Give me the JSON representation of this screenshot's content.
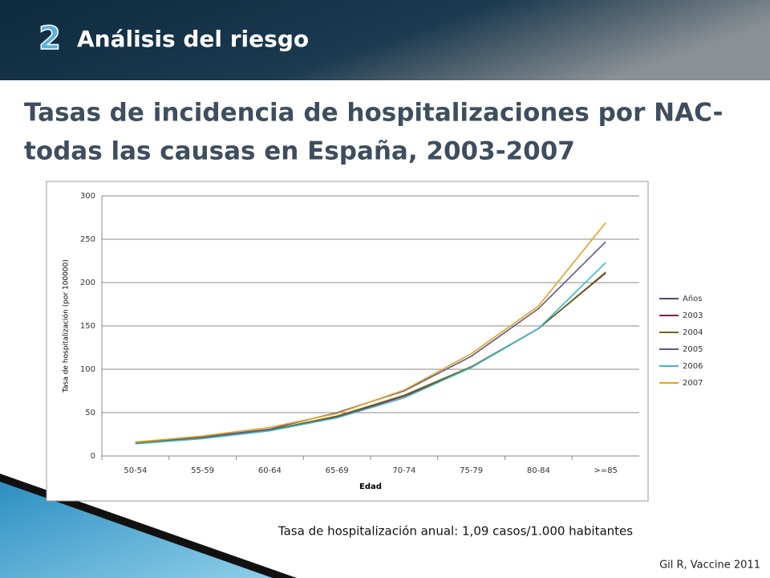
{
  "header": {
    "number": "2",
    "title": "Análisis del  riesgo"
  },
  "title": [
    "Tasas de incidencia de hospitalizaciones por NAC-",
    "todas las causas en España, 2003-2007"
  ],
  "chart_data": {
    "type": "line",
    "categories": [
      "50-54",
      "55-59",
      "60-64",
      "65-69",
      "70-74",
      "75-79",
      "80-84",
      ">=85"
    ],
    "series": [
      {
        "name": "Años",
        "color": "#4a4a6a",
        "values": [
          null,
          null,
          null,
          null,
          null,
          null,
          null,
          null
        ]
      },
      {
        "name": "2003",
        "color": "#8b1a4a",
        "values": [
          15,
          21,
          30,
          45,
          69,
          102,
          147,
          211
        ]
      },
      {
        "name": "2004",
        "color": "#6b6b10",
        "values": [
          15,
          21,
          30,
          46,
          70,
          103,
          147,
          212
        ]
      },
      {
        "name": "2005",
        "color": "#5a5a8a",
        "values": [
          16,
          22,
          31,
          50,
          75,
          115,
          170,
          247
        ]
      },
      {
        "name": "2006",
        "color": "#3cb4d0",
        "values": [
          14,
          20,
          29,
          44,
          67,
          102,
          147,
          223
        ]
      },
      {
        "name": "2007",
        "color": "#e6a020",
        "values": [
          16,
          23,
          33,
          49,
          76,
          118,
          173,
          269
        ]
      }
    ],
    "ylim": [
      0,
      300
    ],
    "yticks": [
      0,
      50,
      100,
      150,
      200,
      250,
      300
    ],
    "grid": true,
    "x_label": "Edad",
    "y_label": "Tasa de hospitalización (por 100000)",
    "legend": "right"
  },
  "footer": {
    "note": "Tasa de hospitalización anual: 1,09 casos/1.000 habitantes",
    "source": "Gil R, Vaccine 2011"
  }
}
